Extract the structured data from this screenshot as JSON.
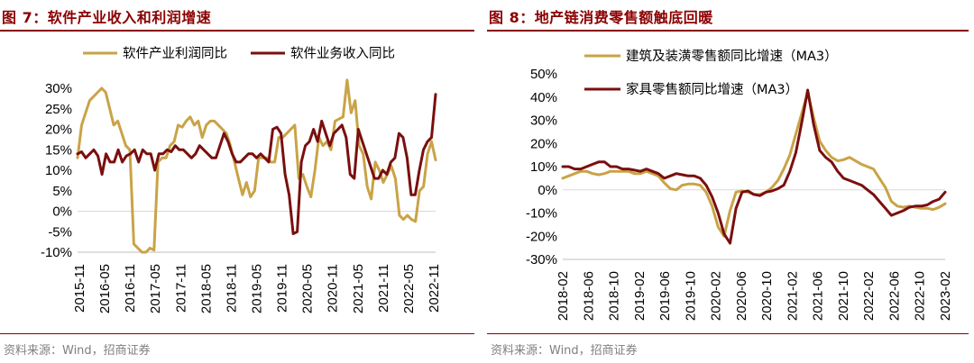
{
  "footer_note": "资料来源：Wind，招商证券",
  "colors": {
    "gold": "#C9A347",
    "maroon": "#7A0F0F",
    "title": "#8B0000"
  },
  "chart_data": [
    {
      "type": "line",
      "title": "图 7：软件产业收入和利润增速",
      "x_ticks": [
        "2015-11",
        "2016-05",
        "2016-11",
        "2017-05",
        "2017-11",
        "2018-05",
        "2018-11",
        "2019-05",
        "2019-11",
        "2020-05",
        "2020-11",
        "2021-05",
        "2021-11",
        "2022-05",
        "2022-11"
      ],
      "y_ticks": [
        "30%",
        "25%",
        "20%",
        "15%",
        "10%",
        "5%",
        "0%",
        "-5%",
        "-10%"
      ],
      "ylim": [
        -10,
        30
      ],
      "legend_position": "top",
      "series": [
        {
          "name": "软件产业利润同比",
          "color": "#C9A347",
          "values": [
            13,
            21,
            24,
            27,
            28,
            29,
            30,
            29,
            25,
            21,
            22,
            19,
            16,
            15,
            -8,
            -9,
            -10,
            -10,
            -9,
            -9.5,
            12,
            13,
            13,
            16,
            17,
            21,
            20.5,
            22,
            23,
            21,
            22,
            18,
            21,
            22,
            22,
            21,
            20,
            19,
            16,
            12,
            8,
            4,
            7,
            3.5,
            5,
            13,
            13,
            13,
            12,
            12,
            18,
            18,
            19,
            20,
            21,
            8,
            9,
            6,
            3.5,
            10,
            18,
            16,
            17,
            15,
            22,
            22.5,
            23,
            32,
            24,
            27,
            16,
            14,
            6,
            3,
            12,
            10,
            7,
            9,
            11,
            8,
            -1,
            -2,
            -1,
            -2,
            -2.5,
            5,
            6,
            14,
            17,
            12.5
          ]
        },
        {
          "name": "软件业务收入同比",
          "color": "#7A0F0F",
          "values": [
            14,
            14.5,
            13,
            14,
            15,
            13.5,
            9,
            14,
            12,
            12,
            15,
            12,
            13.5,
            14,
            15,
            12,
            15,
            14,
            14,
            10,
            14,
            14,
            15,
            14.5,
            16,
            15,
            15,
            14,
            13,
            14,
            16,
            15,
            14,
            13,
            13,
            16,
            19,
            17,
            14,
            12,
            12,
            13,
            14,
            14,
            13,
            14,
            13,
            12,
            20,
            20.5,
            19,
            9,
            4,
            -5.5,
            -5,
            12,
            16,
            17,
            20,
            17,
            22,
            19,
            16,
            19,
            20,
            21,
            18,
            9,
            8,
            20,
            17,
            14,
            11,
            8,
            8,
            10,
            9,
            12,
            13,
            19,
            18,
            13,
            4,
            4,
            10,
            15,
            17,
            18,
            28.5
          ]
        }
      ]
    },
    {
      "type": "line",
      "title": "图 8：地产链消费零售额触底回暖",
      "x_ticks": [
        "2018-02",
        "2018-06",
        "2018-10",
        "2019-02",
        "2019-06",
        "2019-10",
        "2020-02",
        "2020-06",
        "2020-10",
        "2021-02",
        "2021-06",
        "2021-10",
        "2022-02",
        "2022-06",
        "2022-10",
        "2023-02"
      ],
      "y_ticks": [
        "50%",
        "40%",
        "30%",
        "20%",
        "10%",
        "0%",
        "-10%",
        "-20%",
        "-30%"
      ],
      "ylim": [
        -30,
        50
      ],
      "legend_position": "top-left",
      "series": [
        {
          "name": "建筑及装潢零售额同比增速（MA3）",
          "color": "#C9A347",
          "values": [
            5,
            6,
            7,
            8,
            8,
            7,
            6.5,
            7,
            8,
            8,
            8,
            8,
            7,
            7,
            8,
            7,
            6,
            3,
            0.5,
            0,
            2,
            2.5,
            2.5,
            2,
            -1,
            -7,
            -16,
            -20,
            -9,
            -1,
            -0.5,
            -1,
            -2,
            -2,
            -1,
            1,
            4,
            9,
            15,
            24,
            33,
            42,
            31,
            21,
            17,
            14,
            12.5,
            13,
            14,
            12.5,
            11,
            10,
            9,
            5,
            1,
            -5,
            -7,
            -7.5,
            -7,
            -7.5,
            -8,
            -8,
            -8.5,
            -7.5,
            -6
          ]
        },
        {
          "name": "家具零售额同比增速（MA3）",
          "color": "#7A0F0F",
          "values": [
            10,
            10,
            9,
            9,
            10,
            11,
            12,
            12,
            10,
            10,
            9,
            9,
            8.5,
            8,
            9,
            8,
            7,
            5,
            6,
            7,
            6.5,
            6,
            6,
            5,
            2,
            -3,
            -10,
            -19,
            -23,
            -8,
            -1,
            -0.5,
            -2,
            -2.5,
            -1,
            -0.5,
            0.5,
            2,
            8,
            16,
            29,
            43,
            28,
            17,
            14,
            12,
            8,
            5,
            4,
            3,
            2,
            0,
            -2,
            -5,
            -8,
            -11,
            -10,
            -9,
            -7.5,
            -7,
            -7,
            -6.5,
            -5,
            -4,
            -1
          ]
        }
      ]
    }
  ]
}
